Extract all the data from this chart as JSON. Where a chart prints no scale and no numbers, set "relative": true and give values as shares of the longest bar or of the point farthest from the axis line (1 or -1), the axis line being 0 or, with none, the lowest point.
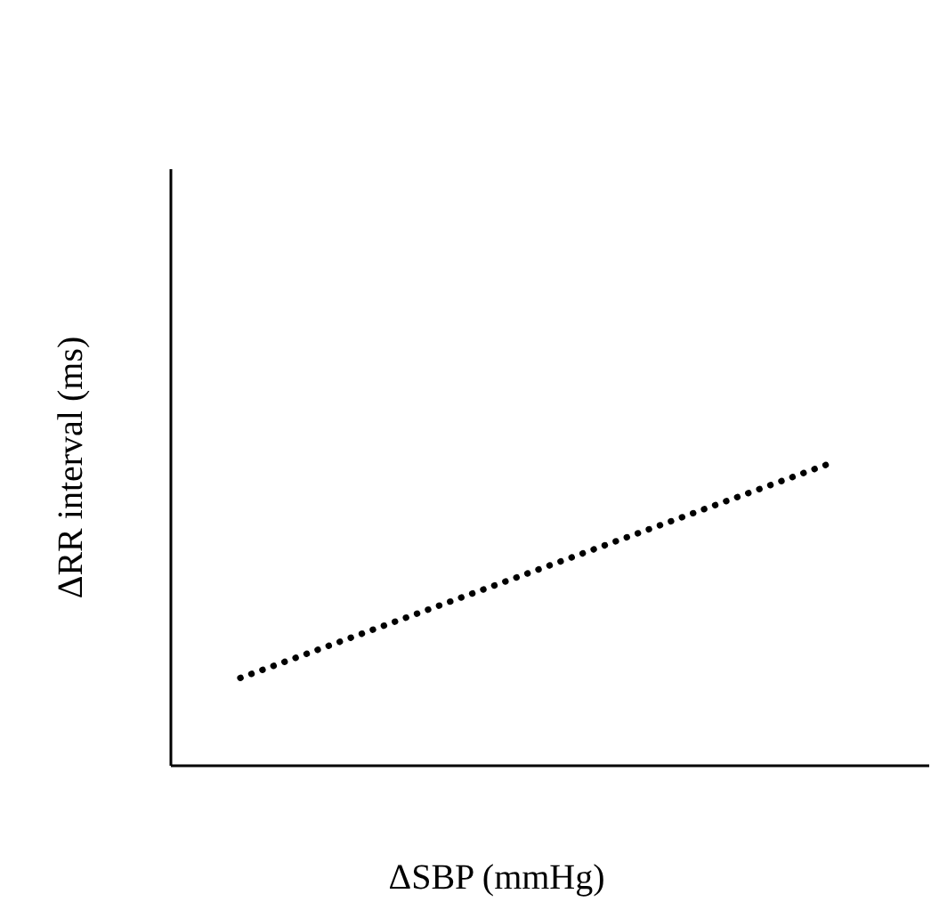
{
  "chart_data": {
    "type": "line",
    "xlabel": "ΔSBP (mmHg)",
    "ylabel": "ΔRR interval (ms)",
    "categories": [
      null,
      null
    ],
    "relative": true,
    "series": [
      {
        "color": "#000000",
        "values": [
          0.29,
          1
        ]
      }
    ],
    "line_style": "dotted",
    "marker": "none"
  }
}
